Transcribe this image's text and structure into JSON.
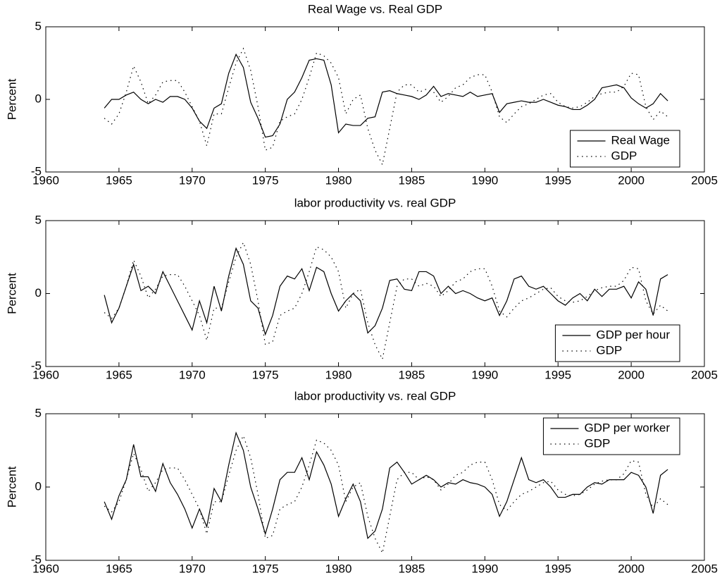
{
  "chart_data": [
    {
      "type": "line",
      "title": "Real Wage vs. Real GDP",
      "ylabel": "Percent",
      "x": [
        1964,
        1964.5,
        1965,
        1965.5,
        1966,
        1966.5,
        1967,
        1967.5,
        1968,
        1968.5,
        1969,
        1969.5,
        1970,
        1970.5,
        1971,
        1971.5,
        1972,
        1972.5,
        1973,
        1973.5,
        1974,
        1974.5,
        1975,
        1975.5,
        1976,
        1976.5,
        1977,
        1977.5,
        1978,
        1978.5,
        1979,
        1979.5,
        1980,
        1980.5,
        1981,
        1981.5,
        1982,
        1982.5,
        1983,
        1983.5,
        1984,
        1984.5,
        1985,
        1985.5,
        1986,
        1986.5,
        1987,
        1987.5,
        1988,
        1988.5,
        1989,
        1989.5,
        1990,
        1990.5,
        1991,
        1991.5,
        1992,
        1992.5,
        1993,
        1993.5,
        1994,
        1994.5,
        1995,
        1995.5,
        1996,
        1996.5,
        1997,
        1997.5,
        1998,
        1998.5,
        1999,
        1999.5,
        2000,
        2000.5,
        2001,
        2001.5,
        2002,
        2002.5
      ],
      "series": [
        {
          "name": "Real Wage",
          "color": "#000000",
          "linestyle": "solid",
          "values": [
            -0.6,
            0,
            0,
            0.3,
            0.5,
            0,
            -0.3,
            0,
            -0.2,
            0.2,
            0.2,
            0,
            -0.6,
            -1.5,
            -2,
            -0.6,
            -0.3,
            1.8,
            3.1,
            2.2,
            -0.2,
            -1.3,
            -2.6,
            -2.5,
            -1.7,
            0,
            0.5,
            1.5,
            2.7,
            2.8,
            2.7,
            1,
            -2.3,
            -1.7,
            -1.8,
            -1.8,
            -1.3,
            -1.2,
            0.5,
            0.6,
            0.4,
            0.3,
            0.2,
            0,
            0.3,
            0.9,
            0.2,
            0.4,
            0.3,
            0.2,
            0.5,
            0.2,
            0.3,
            0.4,
            -0.9,
            -0.3,
            -0.2,
            -0.1,
            -0.2,
            -0.2,
            0,
            -0.2,
            -0.4,
            -0.5,
            -0.7,
            -0.7,
            -0.4,
            0,
            0.8,
            0.9,
            1,
            0.8,
            0.1,
            -0.3,
            -0.6,
            -0.3,
            0.4,
            -0.1
          ]
        },
        {
          "name": "GDP",
          "color": "#000000",
          "linestyle": "dotted",
          "values": [
            -1.3,
            -1.7,
            -1,
            0.5,
            2.3,
            1.2,
            -0.3,
            0.3,
            1.2,
            1.3,
            1.3,
            0.5,
            -0.5,
            -1.5,
            -3.2,
            -1,
            -1,
            0.8,
            2.5,
            3.5,
            2,
            -0.5,
            -3.5,
            -3.3,
            -1.5,
            -1.2,
            -1,
            0,
            1.5,
            3.2,
            3,
            2.5,
            1.5,
            -1,
            0,
            0.3,
            -2,
            -3.5,
            -4.5,
            -2,
            0.5,
            1,
            1,
            0.5,
            0.7,
            0.5,
            -0.2,
            0.2,
            0.8,
            1,
            1.5,
            1.7,
            1.7,
            0.5,
            -1.2,
            -1.6,
            -1,
            -0.5,
            -0.3,
            0,
            0.3,
            0.4,
            -0.2,
            -0.5,
            -0.6,
            -0.5,
            -0.2,
            0.2,
            0.4,
            0.5,
            0.5,
            0.9,
            1.8,
            1.7,
            -0.5,
            -1.4,
            -0.8,
            -1.2
          ]
        }
      ],
      "xlim": [
        1960,
        2005
      ],
      "ylim": [
        -5,
        5
      ],
      "xticks": [
        1960,
        1965,
        1970,
        1975,
        1980,
        1985,
        1990,
        1995,
        2000,
        2005
      ],
      "yticks": [
        -5,
        0,
        5
      ],
      "legend": "lower right"
    },
    {
      "type": "line",
      "title": "labor productivity vs. real GDP",
      "ylabel": "Percent",
      "x": [
        1964,
        1964.5,
        1965,
        1965.5,
        1966,
        1966.5,
        1967,
        1967.5,
        1968,
        1968.5,
        1969,
        1969.5,
        1970,
        1970.5,
        1971,
        1971.5,
        1972,
        1972.5,
        1973,
        1973.5,
        1974,
        1974.5,
        1975,
        1975.5,
        1976,
        1976.5,
        1977,
        1977.5,
        1978,
        1978.5,
        1979,
        1979.5,
        1980,
        1980.5,
        1981,
        1981.5,
        1982,
        1982.5,
        1983,
        1983.5,
        1984,
        1984.5,
        1985,
        1985.5,
        1986,
        1986.5,
        1987,
        1987.5,
        1988,
        1988.5,
        1989,
        1989.5,
        1990,
        1990.5,
        1991,
        1991.5,
        1992,
        1992.5,
        1993,
        1993.5,
        1994,
        1994.5,
        1995,
        1995.5,
        1996,
        1996.5,
        1997,
        1997.5,
        1998,
        1998.5,
        1999,
        1999.5,
        2000,
        2000.5,
        2001,
        2001.5,
        2002,
        2002.5
      ],
      "series": [
        {
          "name": "GDP per hour",
          "color": "#000000",
          "linestyle": "solid",
          "values": [
            -0.1,
            -2,
            -1,
            0.5,
            2,
            0.2,
            0.5,
            0,
            1.5,
            0.5,
            -0.5,
            -1.5,
            -2.5,
            -0.5,
            -2,
            0.5,
            -1.2,
            1.2,
            3.1,
            2,
            -0.5,
            -1,
            -2.8,
            -1.5,
            0.5,
            1.2,
            1,
            1.7,
            0.2,
            1.8,
            1.5,
            0,
            -1.2,
            -0.5,
            0,
            -0.5,
            -2.7,
            -2.2,
            -1,
            0.9,
            1,
            0.3,
            0.2,
            1.5,
            1.5,
            1.2,
            0,
            0.5,
            0,
            0.2,
            0,
            -0.3,
            -0.5,
            -0.3,
            -1.5,
            -0.5,
            1,
            1.2,
            0.5,
            0.3,
            0.5,
            0,
            -0.5,
            -0.8,
            -0.3,
            0,
            -0.5,
            0.3,
            -0.2,
            0.3,
            0.3,
            0.5,
            -0.3,
            0.8,
            0.3,
            -1.5,
            1,
            1.3
          ]
        },
        {
          "name": "GDP",
          "color": "#000000",
          "linestyle": "dotted",
          "values": [
            -1.3,
            -1.7,
            -1,
            0.5,
            2.3,
            1.2,
            -0.3,
            0.3,
            1.2,
            1.3,
            1.3,
            0.5,
            -0.5,
            -1.5,
            -3.2,
            -1,
            -1,
            0.8,
            2.5,
            3.5,
            2,
            -0.5,
            -3.5,
            -3.3,
            -1.5,
            -1.2,
            -1,
            0,
            1.5,
            3.2,
            3,
            2.5,
            1.5,
            -1,
            0,
            0.3,
            -2,
            -3.5,
            -4.5,
            -2,
            0.5,
            1,
            1,
            0.5,
            0.7,
            0.5,
            -0.2,
            0.2,
            0.8,
            1,
            1.5,
            1.7,
            1.7,
            0.5,
            -1.2,
            -1.6,
            -1,
            -0.5,
            -0.3,
            0,
            0.3,
            0.4,
            -0.2,
            -0.5,
            -0.6,
            -0.5,
            -0.2,
            0.2,
            0.4,
            0.5,
            0.5,
            0.9,
            1.8,
            1.7,
            -0.5,
            -1.4,
            -0.8,
            -1.2
          ]
        }
      ],
      "xlim": [
        1960,
        2005
      ],
      "ylim": [
        -5,
        5
      ],
      "xticks": [
        1960,
        1965,
        1970,
        1975,
        1980,
        1985,
        1990,
        1995,
        2000,
        2005
      ],
      "yticks": [
        -5,
        0,
        5
      ],
      "legend": "lower right"
    },
    {
      "type": "line",
      "title": "labor productivity vs. real GDP",
      "ylabel": "Percent",
      "x": [
        1964,
        1964.5,
        1965,
        1965.5,
        1966,
        1966.5,
        1967,
        1967.5,
        1968,
        1968.5,
        1969,
        1969.5,
        1970,
        1970.5,
        1971,
        1971.5,
        1972,
        1972.5,
        1973,
        1973.5,
        1974,
        1974.5,
        1975,
        1975.5,
        1976,
        1976.5,
        1977,
        1977.5,
        1978,
        1978.5,
        1979,
        1979.5,
        1980,
        1980.5,
        1981,
        1981.5,
        1982,
        1982.5,
        1983,
        1983.5,
        1984,
        1984.5,
        1985,
        1985.5,
        1986,
        1986.5,
        1987,
        1987.5,
        1988,
        1988.5,
        1989,
        1989.5,
        1990,
        1990.5,
        1991,
        1991.5,
        1992,
        1992.5,
        1993,
        1993.5,
        1994,
        1994.5,
        1995,
        1995.5,
        1996,
        1996.5,
        1997,
        1997.5,
        1998,
        1998.5,
        1999,
        1999.5,
        2000,
        2000.5,
        2001,
        2001.5,
        2002,
        2002.5
      ],
      "series": [
        {
          "name": "GDP per worker",
          "color": "#000000",
          "linestyle": "solid",
          "values": [
            -1,
            -2.2,
            -0.6,
            0.5,
            2.9,
            0.7,
            0.7,
            -0.3,
            1.6,
            0.3,
            -0.5,
            -1.5,
            -2.8,
            -1.5,
            -2.7,
            -0.1,
            -1,
            1.5,
            3.7,
            2.5,
            0,
            -1.5,
            -3.2,
            -1.5,
            0.5,
            1,
            1,
            2,
            0.5,
            2.4,
            1.5,
            0.2,
            -2,
            -0.8,
            0.2,
            -1,
            -3.5,
            -3,
            -1.5,
            1.3,
            1.7,
            1,
            0.2,
            0.5,
            0.8,
            0.5,
            0,
            0.3,
            0.2,
            0.5,
            0.3,
            0.2,
            0,
            -0.5,
            -2,
            -1,
            0.5,
            2,
            0.5,
            0.3,
            0.5,
            0,
            -0.7,
            -0.7,
            -0.5,
            -0.5,
            0,
            0.3,
            0.2,
            0.5,
            0.5,
            0.5,
            1,
            0.8,
            0,
            -1.8,
            0.8,
            1.2
          ]
        },
        {
          "name": "GDP",
          "color": "#000000",
          "linestyle": "dotted",
          "values": [
            -1.3,
            -1.7,
            -1,
            0.5,
            2.3,
            1.2,
            -0.3,
            0.3,
            1.2,
            1.3,
            1.3,
            0.5,
            -0.5,
            -1.5,
            -3.2,
            -1,
            -1,
            0.8,
            2.5,
            3.5,
            2,
            -0.5,
            -3.5,
            -3.3,
            -1.5,
            -1.2,
            -1,
            0,
            1.5,
            3.2,
            3,
            2.5,
            1.5,
            -1,
            0,
            0.3,
            -2,
            -3.5,
            -4.5,
            -2,
            0.5,
            1,
            1,
            0.5,
            0.7,
            0.5,
            -0.2,
            0.2,
            0.8,
            1,
            1.5,
            1.7,
            1.7,
            0.5,
            -1.2,
            -1.6,
            -1,
            -0.5,
            -0.3,
            0,
            0.3,
            0.4,
            -0.2,
            -0.5,
            -0.6,
            -0.5,
            -0.2,
            0.2,
            0.4,
            0.5,
            0.5,
            0.9,
            1.8,
            1.7,
            -0.5,
            -1.4,
            -0.8,
            -1.2
          ]
        }
      ],
      "xlim": [
        1960,
        2005
      ],
      "ylim": [
        -5,
        5
      ],
      "xticks": [
        1960,
        1965,
        1970,
        1975,
        1980,
        1985,
        1990,
        1995,
        2000,
        2005
      ],
      "yticks": [
        -5,
        0,
        5
      ],
      "legend": "upper right"
    }
  ]
}
